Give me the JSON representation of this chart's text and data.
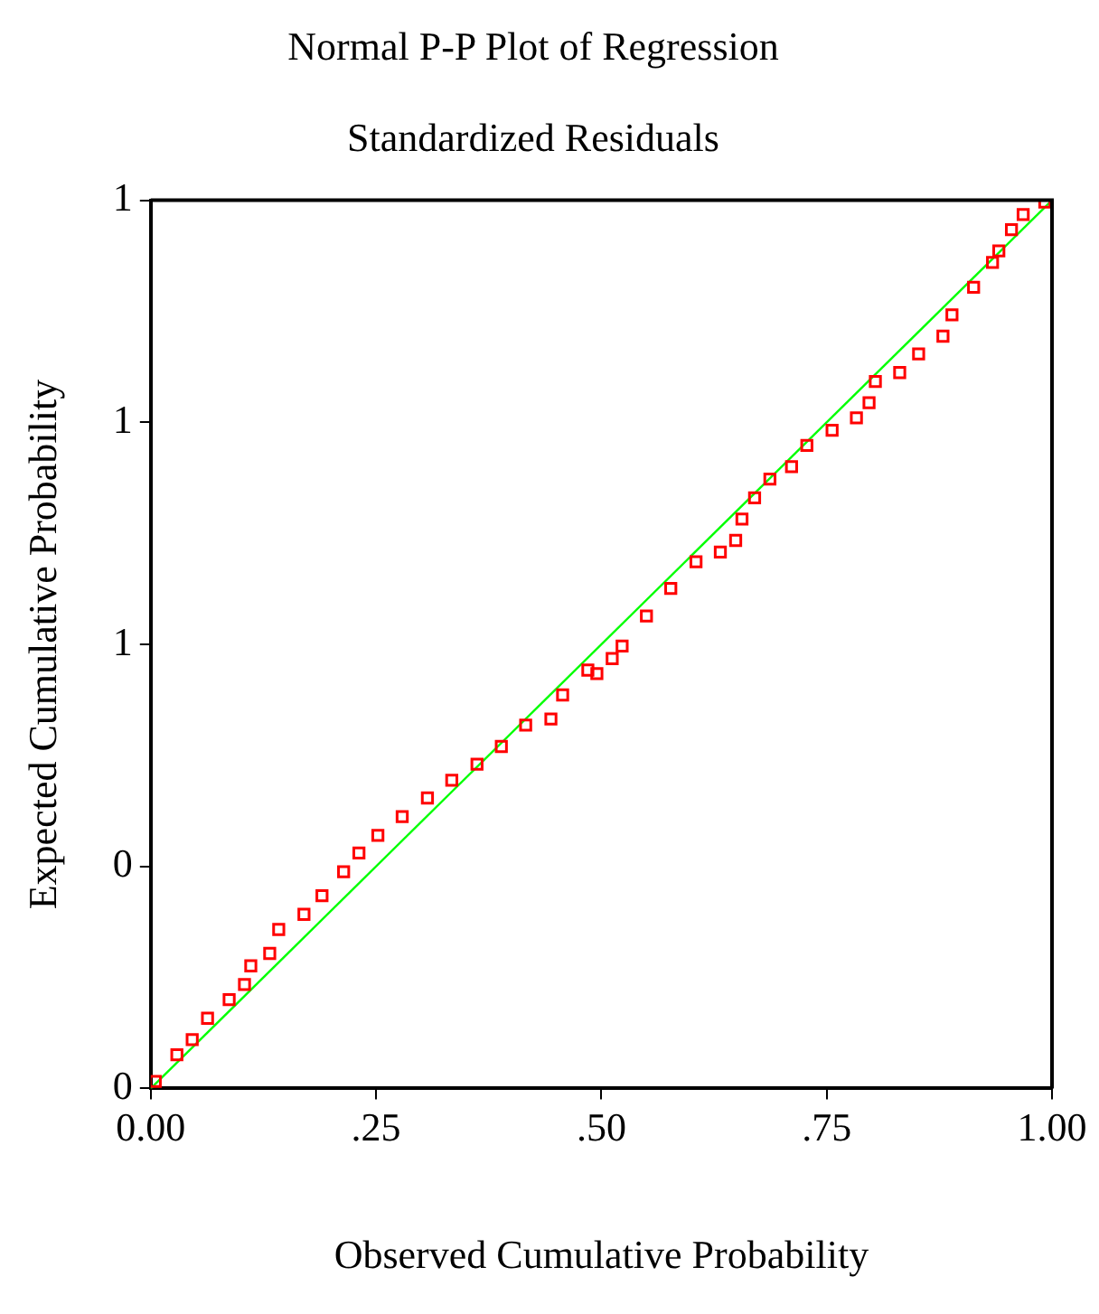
{
  "chart_data": {
    "type": "scatter",
    "title": "Normal P-P Plot of Regression",
    "subtitle": "Standardized Residuals",
    "xlabel": "Observed Cumulative Probability",
    "ylabel": "Expected Cumulative Probability",
    "series": [
      {
        "color": "#ff0000",
        "marker": "square",
        "x": [
          0.005,
          0.029,
          0.046,
          0.063,
          0.087,
          0.104,
          0.111,
          0.132,
          0.142,
          0.17,
          0.19,
          0.214,
          0.231,
          0.252,
          0.279,
          0.307,
          0.334,
          0.362,
          0.389,
          0.416,
          0.444,
          0.457,
          0.485,
          0.495,
          0.512,
          0.523,
          0.55,
          0.577,
          0.605,
          0.632,
          0.649,
          0.656,
          0.67,
          0.687,
          0.711,
          0.728,
          0.756,
          0.783,
          0.797,
          0.804,
          0.831,
          0.852,
          0.879,
          0.889,
          0.913,
          0.934,
          0.941,
          0.955,
          0.968,
          0.992
        ],
        "values": [
          0.008,
          0.038,
          0.055,
          0.079,
          0.1,
          0.117,
          0.138,
          0.152,
          0.179,
          0.196,
          0.217,
          0.244,
          0.265,
          0.285,
          0.306,
          0.327,
          0.347,
          0.365,
          0.385,
          0.409,
          0.416,
          0.443,
          0.471,
          0.467,
          0.484,
          0.498,
          0.532,
          0.563,
          0.593,
          0.604,
          0.617,
          0.641,
          0.665,
          0.686,
          0.7,
          0.724,
          0.741,
          0.755,
          0.772,
          0.796,
          0.806,
          0.827,
          0.847,
          0.871,
          0.902,
          0.93,
          0.943,
          0.967,
          0.984,
          0.998
        ]
      },
      {
        "type": "line",
        "color": "#00ff00",
        "marker": "none",
        "line_style": "solid",
        "x": [
          0,
          1
        ],
        "values": [
          0,
          1
        ]
      }
    ],
    "xlim": [
      0,
      1
    ],
    "ylim": [
      0,
      1
    ],
    "xticks": [
      {
        "value": 0,
        "label": "0.00"
      },
      {
        "value": 0.25,
        "label": ".25"
      },
      {
        "value": 0.5,
        "label": ".50"
      },
      {
        "value": 0.75,
        "label": ".75"
      },
      {
        "value": 1,
        "label": "1.00"
      }
    ],
    "yticks": [
      {
        "value": 0,
        "label": "0"
      },
      {
        "value": 0.25,
        "label": "0"
      },
      {
        "value": 0.5,
        "label": "1"
      },
      {
        "value": 0.75,
        "label": "1"
      },
      {
        "value": 1,
        "label": "1"
      }
    ],
    "grid": false,
    "legend": false
  }
}
